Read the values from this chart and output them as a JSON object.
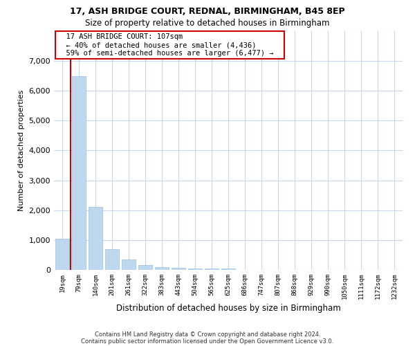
{
  "title1": "17, ASH BRIDGE COURT, REDNAL, BIRMINGHAM, B45 8EP",
  "title2": "Size of property relative to detached houses in Birmingham",
  "xlabel": "Distribution of detached houses by size in Birmingham",
  "ylabel": "Number of detached properties",
  "footnote1": "Contains HM Land Registry data © Crown copyright and database right 2024.",
  "footnote2": "Contains public sector information licensed under the Open Government Licence v3.0.",
  "annotation_line1": "17 ASH BRIDGE COURT: 107sqm",
  "annotation_line2": "← 40% of detached houses are smaller (4,436)",
  "annotation_line3": "59% of semi-detached houses are larger (6,477) →",
  "bar_color": "#bdd7ee",
  "bar_edge_color": "#9ec0dd",
  "marker_color": "#cc0000",
  "categories": [
    "19sqm",
    "79sqm",
    "140sqm",
    "201sqm",
    "261sqm",
    "322sqm",
    "383sqm",
    "443sqm",
    "504sqm",
    "565sqm",
    "625sqm",
    "686sqm",
    "747sqm",
    "807sqm",
    "868sqm",
    "929sqm",
    "990sqm",
    "1050sqm",
    "1111sqm",
    "1172sqm",
    "1232sqm"
  ],
  "values": [
    1050,
    6500,
    2100,
    700,
    350,
    160,
    100,
    70,
    50,
    50,
    50,
    0,
    0,
    0,
    0,
    0,
    0,
    0,
    0,
    0,
    0
  ],
  "ylim": [
    0,
    8000
  ],
  "yticks": [
    0,
    1000,
    2000,
    3000,
    4000,
    5000,
    6000,
    7000
  ],
  "red_line_x": 0.5,
  "bg_color": "#ffffff",
  "grid_color": "#c8d8e8"
}
